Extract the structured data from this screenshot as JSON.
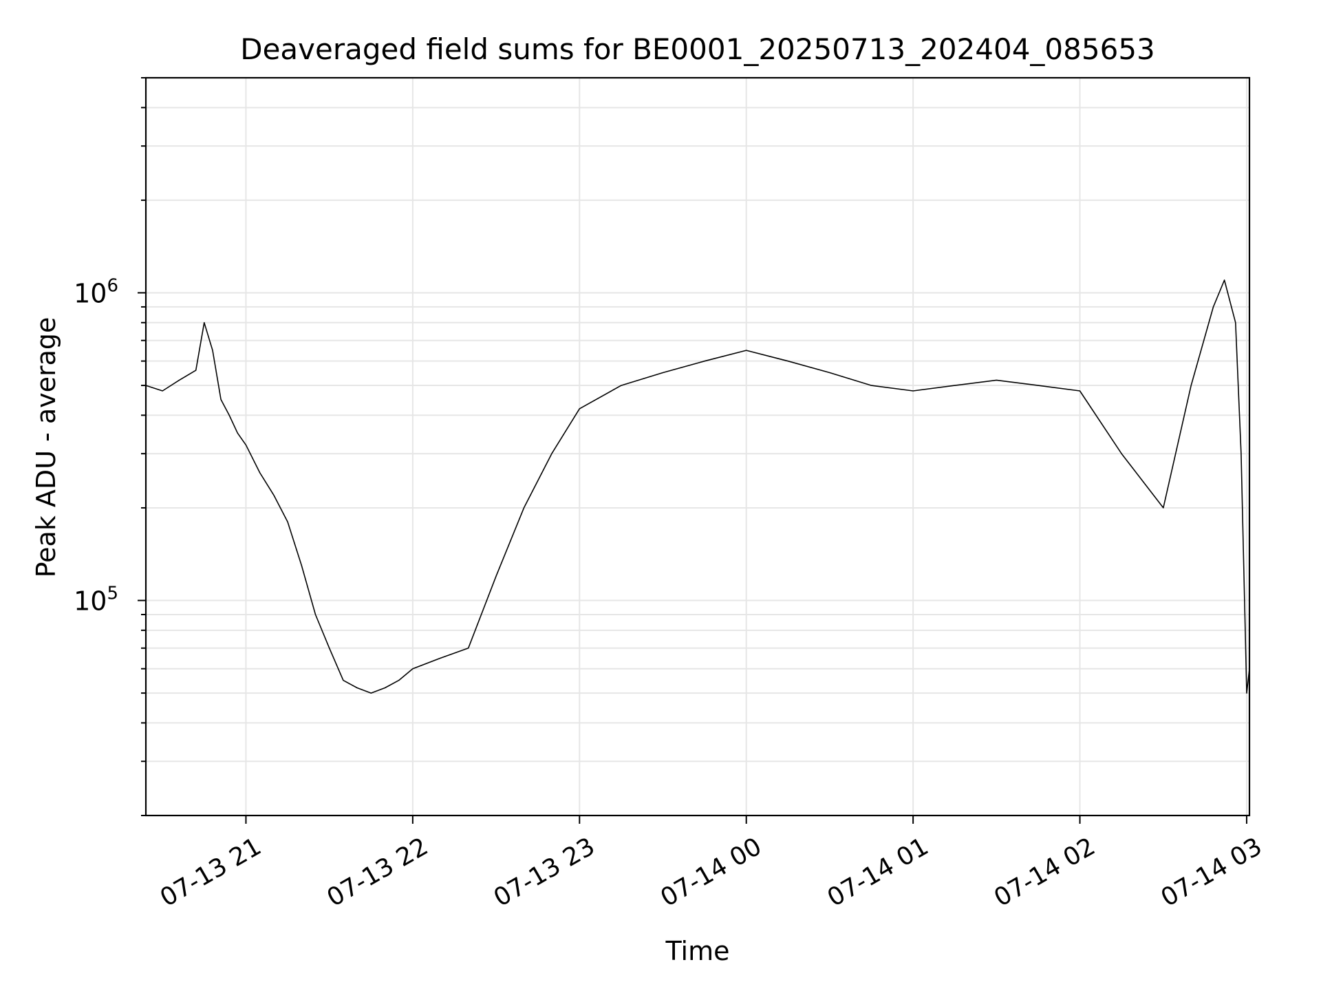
{
  "chart_data": {
    "type": "line",
    "title": "Deaveraged field sums for BE0001_20250713_202404_085653",
    "xlabel": "Time",
    "ylabel": "Peak ADU - average",
    "y_scale": "log",
    "grid": true,
    "x_range": [
      "2025-07-13 20:24",
      "2025-07-14 03:01"
    ],
    "y_range": [
      20000,
      5000000
    ],
    "x_ticks": [
      {
        "value": "2025-07-13 21:00",
        "label": "07-13 21"
      },
      {
        "value": "2025-07-13 22:00",
        "label": "07-13 22"
      },
      {
        "value": "2025-07-13 23:00",
        "label": "07-13 23"
      },
      {
        "value": "2025-07-14 00:00",
        "label": "07-14 00"
      },
      {
        "value": "2025-07-14 01:00",
        "label": "07-14 01"
      },
      {
        "value": "2025-07-14 02:00",
        "label": "07-14 02"
      },
      {
        "value": "2025-07-14 03:00",
        "label": "07-14 03"
      }
    ],
    "y_ticks": [
      {
        "value": 100000,
        "base": "10",
        "exp": "5"
      },
      {
        "value": 1000000,
        "base": "10",
        "exp": "6"
      }
    ],
    "line_color": "#000000",
    "series": [
      {
        "x": [
          "2025-07-13 20:24",
          "2025-07-13 20:30",
          "2025-07-13 20:36",
          "2025-07-13 20:42",
          "2025-07-13 20:45",
          "2025-07-13 20:48",
          "2025-07-13 20:51",
          "2025-07-13 20:54",
          "2025-07-13 20:57",
          "2025-07-13 21:00",
          "2025-07-13 21:05",
          "2025-07-13 21:10",
          "2025-07-13 21:15",
          "2025-07-13 21:20",
          "2025-07-13 21:25",
          "2025-07-13 21:30",
          "2025-07-13 21:35",
          "2025-07-13 21:40",
          "2025-07-13 21:45",
          "2025-07-13 21:50",
          "2025-07-13 21:55",
          "2025-07-13 22:00",
          "2025-07-13 22:10",
          "2025-07-13 22:20",
          "2025-07-13 22:30",
          "2025-07-13 22:40",
          "2025-07-13 22:50",
          "2025-07-13 23:00",
          "2025-07-13 23:15",
          "2025-07-13 23:30",
          "2025-07-13 23:45",
          "2025-07-14 00:00",
          "2025-07-14 00:15",
          "2025-07-14 00:30",
          "2025-07-14 00:45",
          "2025-07-14 01:00",
          "2025-07-14 01:15",
          "2025-07-14 01:30",
          "2025-07-14 01:45",
          "2025-07-14 02:00",
          "2025-07-14 02:15",
          "2025-07-14 02:30",
          "2025-07-14 02:40",
          "2025-07-14 02:48",
          "2025-07-14 02:52",
          "2025-07-14 02:56",
          "2025-07-14 02:58",
          "2025-07-14 03:00",
          "2025-07-14 03:01"
        ],
        "values": [
          500000,
          480000,
          520000,
          560000,
          800000,
          650000,
          450000,
          400000,
          350000,
          320000,
          260000,
          220000,
          180000,
          130000,
          90000,
          70000,
          55000,
          52000,
          50000,
          52000,
          55000,
          60000,
          65000,
          70000,
          120000,
          200000,
          300000,
          420000,
          500000,
          550000,
          600000,
          650000,
          600000,
          550000,
          500000,
          480000,
          500000,
          520000,
          500000,
          480000,
          300000,
          200000,
          500000,
          900000,
          1100000,
          800000,
          300000,
          50000,
          60000
        ]
      }
    ]
  }
}
